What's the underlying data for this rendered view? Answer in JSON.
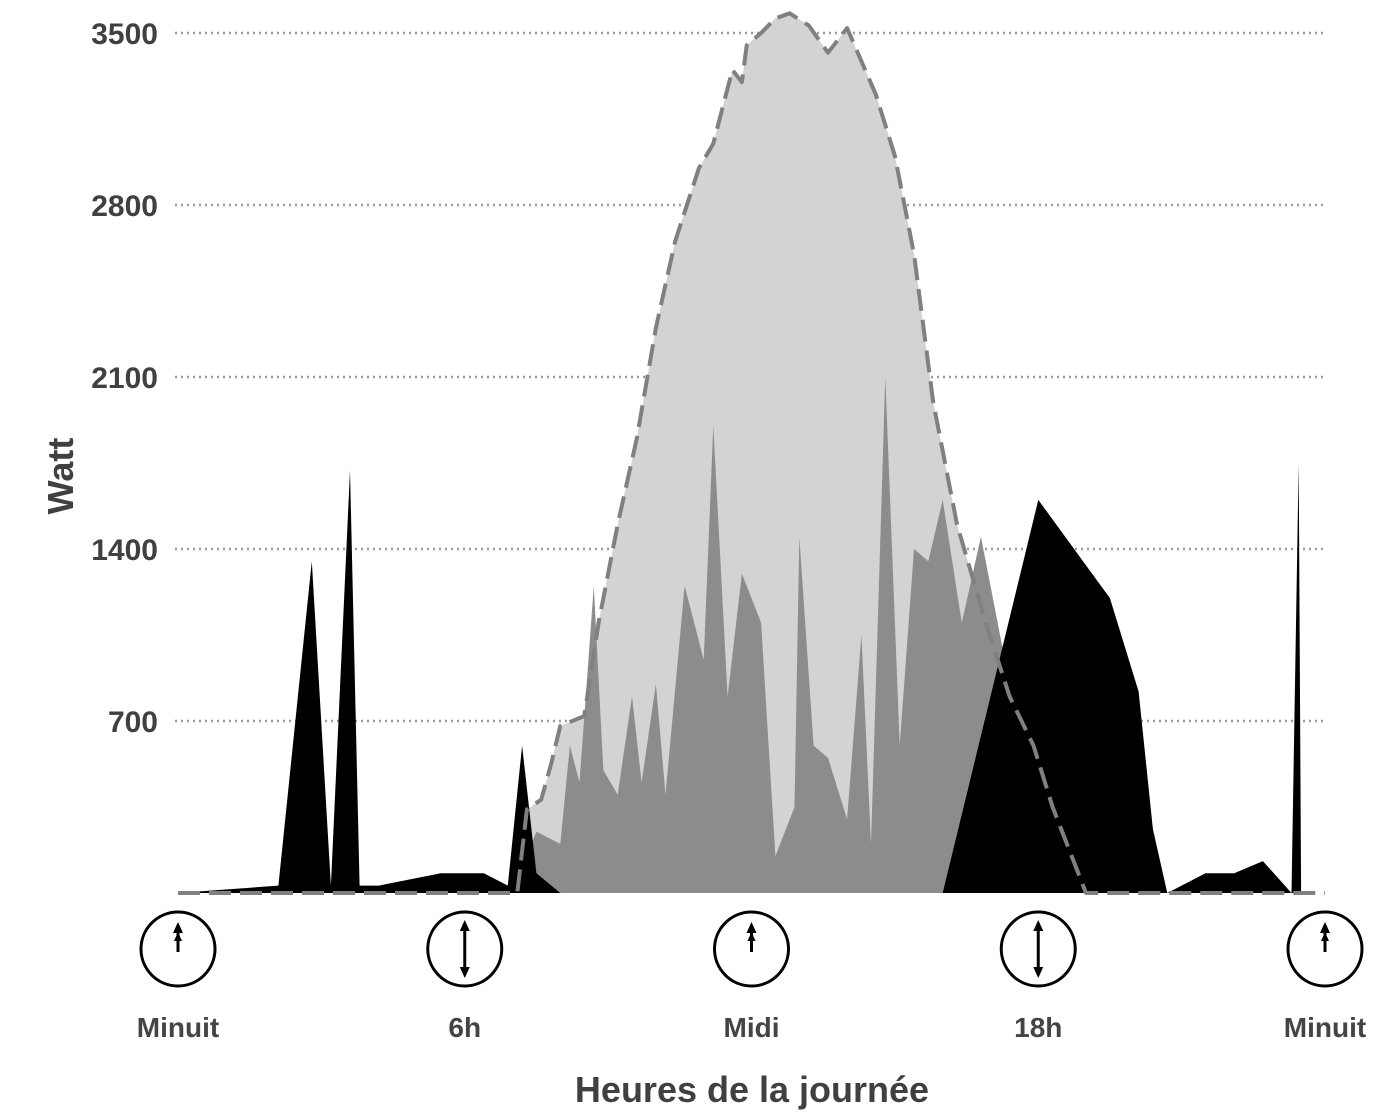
{
  "chart_data": {
    "type": "area",
    "ylabel": "Watt",
    "xlabel": "Heures de la journée",
    "ylim": [
      0,
      3600
    ],
    "yticks": [
      "700",
      "1400",
      "2100",
      "2800",
      "3500"
    ],
    "xticks": [
      "Minuit",
      "6h",
      "Midi",
      "18h",
      "Minuit"
    ],
    "grid": true,
    "colors": {
      "production": "#d3d3d3",
      "envelope": "#808080",
      "solar_used": "#8c8c8c",
      "grid_import": "#000000"
    },
    "series": [
      {
        "role": "production",
        "x": [
          7.1,
          7.3,
          7.6,
          7.8,
          8.0,
          8.5,
          8.8,
          9.2,
          9.6,
          10.0,
          10.4,
          10.9,
          11.2,
          11.4,
          11.6,
          11.8,
          11.9,
          12.2,
          12.5,
          12.8,
          13.2,
          13.6,
          14.0,
          14.6,
          15.0,
          15.4,
          15.8,
          16.3,
          16.9,
          17.4,
          17.9,
          18.3,
          18.6,
          19.0,
          19.4,
          19.8,
          20.2,
          20.6,
          21.0
        ],
        "y": [
          0,
          340,
          380,
          520,
          680,
          720,
          1100,
          1500,
          1850,
          2300,
          2650,
          2950,
          3050,
          3200,
          3350,
          3300,
          3450,
          3500,
          3560,
          3580,
          3530,
          3420,
          3520,
          3250,
          3000,
          2600,
          2000,
          1500,
          1100,
          800,
          600,
          350,
          200,
          0,
          0,
          0,
          0,
          0,
          0
        ]
      },
      {
        "role": "solar_used",
        "x": [
          7.0,
          7.5,
          8.0,
          8.2,
          8.4,
          8.7,
          8.9,
          9.2,
          9.5,
          9.7,
          10.0,
          10.2,
          10.6,
          11.0,
          11.2,
          11.5,
          11.8,
          12.2,
          12.5,
          12.9,
          13.0,
          13.3,
          13.6,
          14.0,
          14.3,
          14.5,
          14.8,
          15.1,
          15.4,
          15.7,
          16.0,
          16.4,
          16.8,
          17.0,
          17.3,
          17.7,
          18.1,
          18.5,
          19.0,
          19.5,
          20.0,
          20.5,
          21.0
        ],
        "y": [
          0,
          250,
          200,
          600,
          450,
          1250,
          500,
          400,
          800,
          450,
          850,
          400,
          1250,
          950,
          1900,
          800,
          1300,
          1100,
          150,
          350,
          1450,
          600,
          550,
          300,
          1050,
          200,
          2100,
          600,
          1400,
          1350,
          1600,
          1100,
          1450,
          1250,
          950,
          1350,
          700,
          300,
          200,
          0,
          0,
          0,
          0
        ]
      },
      {
        "role": "grid_import",
        "x": [
          0,
          2.1,
          2.8,
          3.2,
          3.6,
          3.8,
          4.2,
          5.5,
          6.4,
          6.9,
          7.2,
          7.5,
          8.0,
          10.0,
          12.0,
          14.0,
          16.0,
          18.0,
          19.5,
          20.1,
          20.4,
          20.7,
          21.5,
          22.1,
          22.7,
          23.3,
          23.45,
          23.5,
          24
        ],
        "y": [
          0,
          30,
          1350,
          30,
          1720,
          30,
          30,
          80,
          80,
          30,
          600,
          80,
          0,
          0,
          0,
          0,
          0,
          1600,
          1200,
          820,
          260,
          0,
          80,
          80,
          130,
          0,
          1750,
          0,
          0
        ]
      }
    ]
  }
}
